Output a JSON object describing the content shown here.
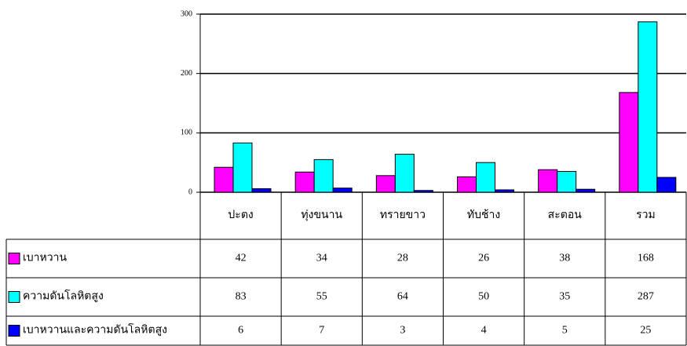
{
  "chart_data": {
    "type": "bar",
    "categories": [
      "ปะตง",
      "ทุ่งขนาน",
      "ทรายขาว",
      "ทับช้าง",
      "สะตอน",
      "รวม"
    ],
    "series": [
      {
        "name": "เบาหวาน",
        "color": "#ff00ff",
        "values": [
          42,
          34,
          28,
          26,
          38,
          168
        ]
      },
      {
        "name": "ความดันโลหิตสูง",
        "color": "#00ffff",
        "values": [
          83,
          55,
          64,
          50,
          35,
          287
        ]
      },
      {
        "name": "เบาหวานและความดันโลหิตสูง",
        "color": "#0000ff",
        "values": [
          6,
          7,
          3,
          4,
          5,
          25
        ]
      }
    ],
    "ylim": [
      0,
      300
    ],
    "yticks": [
      0,
      100,
      200,
      300
    ],
    "grid": true
  }
}
